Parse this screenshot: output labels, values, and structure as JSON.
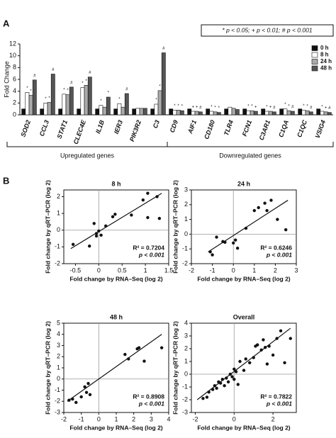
{
  "panel_labels": [
    "A",
    "B"
  ],
  "chart_data": [
    {
      "type": "bar",
      "y_label": "Fold Change",
      "significance_legend": "* p < 0.05; + p < 0.01; # p < 0.001",
      "categories": [
        "SOD2",
        "CCL3",
        "STAT1",
        "CLEC4E",
        "IL1B",
        "IER3",
        "PIK3R2",
        "C3",
        "CD9",
        "AIF1",
        "CD180",
        "TLR4",
        "FCN1",
        "C3AR1",
        "C1QA",
        "C1QC",
        "VSIG4"
      ],
      "groups": [
        {
          "label": "Upregulated genes",
          "first": "SOD2",
          "last": "C3"
        },
        {
          "label": "Downregulated genes",
          "first": "CD9",
          "last": "VSIG4"
        }
      ],
      "series": [
        {
          "name": "0 h",
          "color": "#111111",
          "values": [
            1,
            1,
            1,
            1,
            1,
            1,
            1,
            1,
            1,
            1,
            1,
            1,
            1,
            1,
            1,
            1,
            1
          ]
        },
        {
          "name": "8 h",
          "color": "#ffffff",
          "values": [
            3.8,
            2.0,
            3.5,
            4.6,
            1.6,
            1.9,
            1.1,
            1.8,
            0.8,
            0.6,
            0.6,
            1.3,
            0.7,
            0.6,
            1.0,
            0.8,
            0.6
          ],
          "markers": [
            "*",
            "*",
            "*",
            "*",
            "*",
            "*",
            null,
            "*",
            "*",
            "+",
            "*",
            null,
            "*",
            "*",
            "*",
            "*",
            "*"
          ]
        },
        {
          "name": "24 h",
          "color": "#aaaaaa",
          "values": [
            3.3,
            2.1,
            3.4,
            5.0,
            1.3,
            1.3,
            1.1,
            4.1,
            0.8,
            0.6,
            0.5,
            1.1,
            0.7,
            0.6,
            0.7,
            0.7,
            0.5
          ],
          "markers": [
            "*",
            "*",
            "*",
            "*",
            null,
            null,
            null,
            "*",
            "*",
            "+",
            "*",
            null,
            "*",
            "+",
            "*",
            "*",
            "+"
          ]
        },
        {
          "name": "48 h",
          "color": "#555555",
          "values": [
            5.9,
            6.9,
            4.7,
            6.4,
            3.0,
            3.6,
            1.1,
            10.5,
            0.7,
            0.5,
            0.4,
            0.9,
            0.6,
            0.5,
            0.6,
            0.5,
            0.4
          ],
          "markers": [
            "#",
            "#",
            "#",
            "#",
            "*",
            "#",
            null,
            "#",
            "*",
            "#",
            "*",
            null,
            "+",
            "#",
            "#",
            "#",
            "#"
          ]
        }
      ],
      "ylim": [
        0,
        12
      ],
      "yticks": [
        0,
        2,
        4,
        6,
        8,
        10,
        12
      ]
    },
    {
      "type": "scatter",
      "title": "8 h",
      "x_label": "Fold change by RNA–Seq (log 2)",
      "y_label": "Fold change by qRT–PCR (log 2)",
      "x": [
        -0.55,
        -0.2,
        -0.05,
        0,
        -0.05,
        0.05,
        -0.1,
        0.3,
        0.35,
        0.7,
        1.05,
        0.95,
        1.05,
        1.25,
        1.3,
        0.15
      ],
      "y": [
        -0.85,
        -0.95,
        -0.2,
        -0.05,
        -0.35,
        -0.3,
        0.4,
        0.8,
        0.95,
        0.9,
        0.75,
        1.8,
        2.2,
        2.0,
        0.7,
        0.25
      ],
      "fit_line": {
        "x": [
          -0.6,
          1.35
        ],
        "y": [
          -1.1,
          2.2
        ]
      },
      "r_squared_label": "R² = 0.7204",
      "p_label": "p < 0.001",
      "xlim": [
        -0.75,
        1.5
      ],
      "xticks": [
        -0.5,
        0,
        0.5,
        1,
        1.5
      ],
      "ylim": [
        -2,
        2.4
      ],
      "yticks": [
        -2,
        -1,
        0,
        1,
        2
      ]
    },
    {
      "type": "scatter",
      "title": "24 h",
      "x_label": "Fold change by RNA–Seq (log 2)",
      "y_label": "Fold change by qRT–PCR (log 2)",
      "x": [
        -1.1,
        -1,
        -0.8,
        -0.5,
        -0.4,
        0,
        0.1,
        0.2,
        0.6,
        1,
        1.2,
        1.5,
        1.8,
        2.1,
        2.5,
        1.6
      ],
      "y": [
        -1.2,
        -1.4,
        -0.2,
        -0.5,
        -0.55,
        -0.6,
        -0.4,
        -0.95,
        0.4,
        1.6,
        1.8,
        2.1,
        2.3,
        1,
        0.3,
        1.6
      ],
      "fit_line": {
        "x": [
          -1.2,
          2.6
        ],
        "y": [
          -1.2,
          2.3
        ]
      },
      "r_squared_label": "R² = 0.6246",
      "p_label": "p < 0.001",
      "xlim": [
        -2,
        3
      ],
      "xticks": [
        -2,
        -1,
        0,
        1,
        2,
        3
      ],
      "ylim": [
        -2,
        3
      ],
      "yticks": [
        -2,
        -1,
        0,
        1,
        2,
        3
      ]
    },
    {
      "type": "scatter",
      "title": "48 h",
      "x_label": "Fold change by RNA–Seq (log 2)",
      "y_label": "Fold change by qRT–PCR (log 2)",
      "x": [
        -1.7,
        -1.5,
        -1.3,
        -1,
        -0.8,
        -0.6,
        -0.5,
        -0.7,
        1.5,
        1.7,
        2.2,
        2.3,
        2.6,
        3.6
      ],
      "y": [
        -1.9,
        -1.8,
        -2.1,
        -1.6,
        -0.7,
        -0.4,
        -1.4,
        -1.2,
        2.2,
        1.8,
        2.7,
        2.8,
        1.6,
        2.8
      ],
      "fit_line": {
        "x": [
          -1.8,
          3.6
        ],
        "y": [
          -2,
          4
        ]
      },
      "r_squared_label": "R² = 0.8908",
      "p_label": "p < 0.001",
      "xlim": [
        -2,
        4
      ],
      "xticks": [
        -2,
        -1,
        0,
        1,
        2,
        3,
        4
      ],
      "ylim": [
        -3,
        5
      ],
      "yticks": [
        -3,
        -2,
        -1,
        0,
        1,
        2,
        3,
        4,
        5
      ]
    },
    {
      "type": "scatter",
      "title": "Overall",
      "x_label": "Fold change by RNA–Seq (log 2)",
      "y_label": "Fold change by qRT–PCR (log 2)",
      "x": [
        -1.6,
        -1.4,
        -1.3,
        -1.1,
        -1,
        -0.9,
        -0.8,
        -0.7,
        -0.6,
        -0.5,
        -0.4,
        -0.3,
        -0.2,
        -0.1,
        0,
        0,
        0.1,
        0.2,
        0.3,
        0.5,
        0.6,
        0.8,
        1,
        1.1,
        1.2,
        1.4,
        1.5,
        1.6,
        1.7,
        1.8,
        2,
        2.2,
        2.4,
        2.6,
        2.9
      ],
      "y": [
        -1.9,
        -1.8,
        -1.4,
        -1.2,
        -0.9,
        -1.1,
        -0.6,
        -0.7,
        -0.4,
        -0.9,
        -0.3,
        -0.6,
        0,
        -0.2,
        0.4,
        -0.4,
        0.2,
        -0.8,
        1,
        0.3,
        1.2,
        0.9,
        1.3,
        2.2,
        2.3,
        1.9,
        2.7,
        2.1,
        0.8,
        2.2,
        1.5,
        2.8,
        3.4,
        0.9,
        2.8
      ],
      "fit_line": {
        "x": [
          -1.9,
          2.9
        ],
        "y": [
          -2,
          3.6
        ]
      },
      "r_squared_label": "R² = 0.7822",
      "p_label": "p < 0.001",
      "xlim": [
        -2.2,
        3.2
      ],
      "xticks": [
        -2,
        0,
        2
      ],
      "ylim": [
        -3,
        4
      ],
      "yticks": [
        -3,
        -2,
        -1,
        0,
        1,
        2,
        3,
        4
      ]
    }
  ]
}
